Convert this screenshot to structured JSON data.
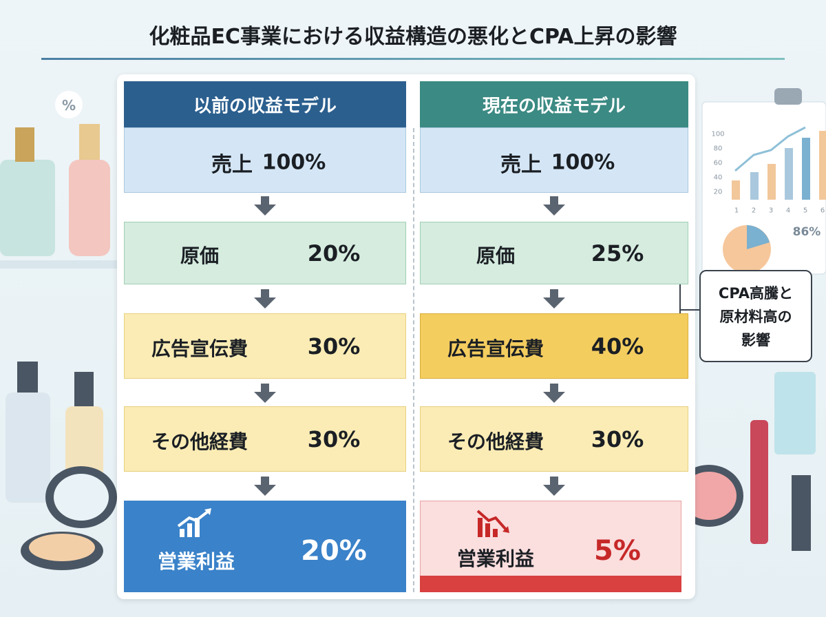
{
  "title": "化粧品EC事業における収益構造の悪化とCPA上昇の影響",
  "columns": [
    {
      "header": "以前の収益モデル",
      "sales": {
        "label": "売上",
        "value": "100%"
      },
      "rows": [
        {
          "label": "原価",
          "value": "20%"
        },
        {
          "label": "広告宣伝費",
          "value": "30%"
        },
        {
          "label": "その他経費",
          "value": "30%"
        }
      ],
      "profit": {
        "label": "営業利益",
        "value": "20%"
      }
    },
    {
      "header": "現在の収益モデル",
      "sales": {
        "label": "売上",
        "value": "100%"
      },
      "rows": [
        {
          "label": "原価",
          "value": "25%"
        },
        {
          "label": "広告宣伝費",
          "value": "40%"
        },
        {
          "label": "その他経費",
          "value": "30%"
        }
      ],
      "profit": {
        "label": "営業利益",
        "value": "5%"
      }
    }
  ],
  "callout": {
    "lines": [
      "CPA高騰と",
      "原材料高の",
      "影響"
    ]
  },
  "decor": {
    "bubble": "%",
    "chart_ticks": [
      "100",
      "80",
      "60",
      "40",
      "20"
    ],
    "chart_x": [
      "1",
      "2",
      "3",
      "4",
      "5",
      "6"
    ],
    "pie_label": "86%"
  }
}
